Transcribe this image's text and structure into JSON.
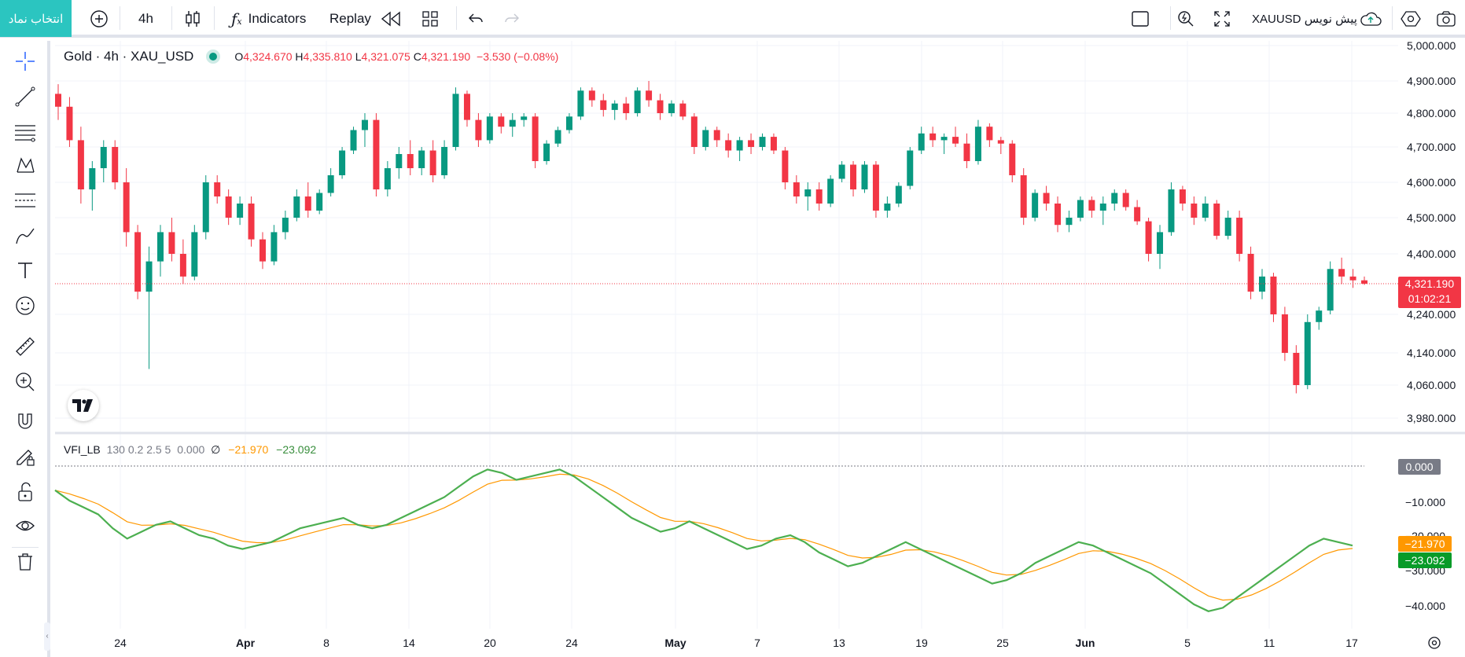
{
  "toolbar": {
    "symbol_button": "انتخاب نماد",
    "interval": "4h",
    "indicators": "Indicators",
    "replay": "Replay",
    "symbol_note": "XAUUSD پیش نویس"
  },
  "legend": {
    "title": "Gold · 4h · XAU_USD",
    "o_key": "O",
    "o_val": "4,324.670",
    "h_key": "H",
    "h_val": "4,335.810",
    "l_key": "L",
    "l_val": "4,321.075",
    "c_key": "C",
    "c_val": "4,321.190",
    "change": "−3.530 (−0.08%)"
  },
  "vfi_legend": {
    "name": "VFI_LB",
    "params": "130 0.2 2.5 5",
    "zero": "0.000",
    "empty_glyph": "∅",
    "signal": "−21.970",
    "value": "−23.092"
  },
  "price_scale": [
    "5,000.000",
    "4,900.000",
    "4,800.000",
    "4,700.000",
    "4,600.000",
    "4,500.000",
    "4,400.000",
    "4,240.000",
    "4,140.000",
    "4,060.000",
    "3,980.000"
  ],
  "vfi_scale": [
    "−10.000",
    "−20.000",
    "−30.000",
    "−40.000"
  ],
  "current_price": {
    "price": "4,321.190",
    "countdown": "01:02:21"
  },
  "vfi_tags": {
    "zero": "0.000",
    "signal": "−21.970",
    "value": "−23.092"
  },
  "time_axis": [
    "24",
    "Apr",
    "8",
    "14",
    "20",
    "24",
    "May",
    "7",
    "13",
    "19",
    "25",
    "Jun",
    "5",
    "11",
    "17"
  ],
  "colors": {
    "up": "#089981",
    "down": "#f23645",
    "vfi": "#4caf50",
    "signal": "#ff9800",
    "accent": "#2bc5c0"
  },
  "chart_data": {
    "type": "candlestick",
    "price_range": [
      3950,
      5020
    ],
    "vfi_range": [
      -44,
      3
    ],
    "candles": [
      [
        4860,
        4890,
        4780,
        4820
      ],
      [
        4820,
        4850,
        4700,
        4720
      ],
      [
        4720,
        4760,
        4540,
        4580
      ],
      [
        4580,
        4660,
        4520,
        4640
      ],
      [
        4640,
        4720,
        4600,
        4700
      ],
      [
        4700,
        4720,
        4580,
        4600
      ],
      [
        4600,
        4640,
        4420,
        4460
      ],
      [
        4460,
        4480,
        4280,
        4300
      ],
      [
        4300,
        4420,
        4100,
        4380
      ],
      [
        4380,
        4480,
        4340,
        4460
      ],
      [
        4460,
        4500,
        4380,
        4400
      ],
      [
        4400,
        4440,
        4320,
        4340
      ],
      [
        4340,
        4480,
        4330,
        4460
      ],
      [
        4460,
        4620,
        4440,
        4600
      ],
      [
        4600,
        4620,
        4540,
        4560
      ],
      [
        4560,
        4580,
        4480,
        4500
      ],
      [
        4500,
        4560,
        4480,
        4540
      ],
      [
        4540,
        4560,
        4420,
        4440
      ],
      [
        4440,
        4460,
        4360,
        4380
      ],
      [
        4380,
        4480,
        4370,
        4460
      ],
      [
        4460,
        4520,
        4440,
        4500
      ],
      [
        4500,
        4580,
        4490,
        4560
      ],
      [
        4560,
        4600,
        4500,
        4520
      ],
      [
        4520,
        4580,
        4510,
        4570
      ],
      [
        4570,
        4640,
        4560,
        4620
      ],
      [
        4620,
        4700,
        4610,
        4690
      ],
      [
        4690,
        4760,
        4680,
        4750
      ],
      [
        4750,
        4800,
        4700,
        4780
      ],
      [
        4780,
        4800,
        4560,
        4580
      ],
      [
        4580,
        4660,
        4560,
        4640
      ],
      [
        4640,
        4700,
        4610,
        4680
      ],
      [
        4680,
        4720,
        4620,
        4640
      ],
      [
        4640,
        4700,
        4620,
        4690
      ],
      [
        4690,
        4720,
        4600,
        4620
      ],
      [
        4620,
        4720,
        4610,
        4700
      ],
      [
        4700,
        4880,
        4690,
        4860
      ],
      [
        4860,
        4870,
        4760,
        4780
      ],
      [
        4780,
        4800,
        4700,
        4720
      ],
      [
        4720,
        4800,
        4710,
        4790
      ],
      [
        4790,
        4800,
        4740,
        4760
      ],
      [
        4760,
        4800,
        4730,
        4780
      ],
      [
        4780,
        4800,
        4760,
        4790
      ],
      [
        4790,
        4800,
        4640,
        4660
      ],
      [
        4660,
        4720,
        4650,
        4710
      ],
      [
        4710,
        4760,
        4700,
        4750
      ],
      [
        4750,
        4800,
        4740,
        4790
      ],
      [
        4790,
        4880,
        4780,
        4870
      ],
      [
        4870,
        4880,
        4820,
        4840
      ],
      [
        4840,
        4860,
        4790,
        4810
      ],
      [
        4810,
        4840,
        4780,
        4830
      ],
      [
        4830,
        4850,
        4780,
        4800
      ],
      [
        4800,
        4880,
        4790,
        4870
      ],
      [
        4870,
        4900,
        4820,
        4840
      ],
      [
        4840,
        4860,
        4780,
        4800
      ],
      [
        4800,
        4840,
        4790,
        4830
      ],
      [
        4830,
        4840,
        4780,
        4790
      ],
      [
        4790,
        4800,
        4680,
        4700
      ],
      [
        4700,
        4760,
        4690,
        4750
      ],
      [
        4750,
        4760,
        4700,
        4720
      ],
      [
        4720,
        4740,
        4670,
        4690
      ],
      [
        4690,
        4730,
        4660,
        4720
      ],
      [
        4720,
        4740,
        4680,
        4700
      ],
      [
        4700,
        4740,
        4690,
        4730
      ],
      [
        4730,
        4740,
        4680,
        4690
      ],
      [
        4690,
        4700,
        4580,
        4600
      ],
      [
        4600,
        4620,
        4540,
        4560
      ],
      [
        4560,
        4600,
        4520,
        4580
      ],
      [
        4580,
        4600,
        4520,
        4540
      ],
      [
        4540,
        4620,
        4530,
        4610
      ],
      [
        4610,
        4660,
        4600,
        4650
      ],
      [
        4650,
        4660,
        4560,
        4580
      ],
      [
        4580,
        4660,
        4570,
        4650
      ],
      [
        4650,
        4660,
        4500,
        4520
      ],
      [
        4520,
        4560,
        4500,
        4540
      ],
      [
        4540,
        4600,
        4530,
        4590
      ],
      [
        4590,
        4700,
        4580,
        4690
      ],
      [
        4690,
        4760,
        4680,
        4740
      ],
      [
        4740,
        4760,
        4700,
        4720
      ],
      [
        4720,
        4740,
        4680,
        4730
      ],
      [
        4730,
        4760,
        4700,
        4710
      ],
      [
        4710,
        4740,
        4640,
        4660
      ],
      [
        4660,
        4780,
        4650,
        4760
      ],
      [
        4760,
        4770,
        4700,
        4720
      ],
      [
        4720,
        4730,
        4680,
        4710
      ],
      [
        4710,
        4720,
        4600,
        4620
      ],
      [
        4620,
        4640,
        4480,
        4500
      ],
      [
        4500,
        4580,
        4490,
        4570
      ],
      [
        4570,
        4590,
        4520,
        4540
      ],
      [
        4540,
        4560,
        4460,
        4480
      ],
      [
        4480,
        4520,
        4460,
        4500
      ],
      [
        4500,
        4560,
        4490,
        4550
      ],
      [
        4550,
        4560,
        4500,
        4520
      ],
      [
        4520,
        4560,
        4480,
        4540
      ],
      [
        4540,
        4580,
        4520,
        4570
      ],
      [
        4570,
        4580,
        4520,
        4530
      ],
      [
        4530,
        4550,
        4480,
        4490
      ],
      [
        4490,
        4500,
        4380,
        4400
      ],
      [
        4400,
        4480,
        4360,
        4460
      ],
      [
        4460,
        4600,
        4450,
        4580
      ],
      [
        4580,
        4590,
        4520,
        4540
      ],
      [
        4540,
        4560,
        4480,
        4500
      ],
      [
        4500,
        4560,
        4490,
        4540
      ],
      [
        4540,
        4550,
        4440,
        4450
      ],
      [
        4450,
        4520,
        4440,
        4500
      ],
      [
        4500,
        4520,
        4380,
        4400
      ],
      [
        4400,
        4420,
        4280,
        4300
      ],
      [
        4300,
        4360,
        4280,
        4340
      ],
      [
        4340,
        4350,
        4220,
        4240
      ],
      [
        4240,
        4260,
        4120,
        4140
      ],
      [
        4140,
        4160,
        4040,
        4060
      ],
      [
        4060,
        4240,
        4050,
        4220
      ],
      [
        4220,
        4260,
        4200,
        4250
      ],
      [
        4250,
        4380,
        4240,
        4360
      ],
      [
        4360,
        4390,
        4320,
        4340
      ],
      [
        4340,
        4360,
        4310,
        4330
      ],
      [
        4330,
        4340,
        4318,
        4321
      ]
    ],
    "vfi": [
      -7,
      -10,
      -12,
      -14,
      -18,
      -21,
      -19,
      -17,
      -16,
      -18,
      -20,
      -21,
      -23,
      -24,
      -23,
      -22,
      -20,
      -18,
      -17,
      -16,
      -15,
      -17,
      -18,
      -17,
      -15,
      -13,
      -11,
      -9,
      -6,
      -3,
      -1,
      -2,
      -4,
      -3,
      -2,
      -1,
      -3,
      -6,
      -9,
      -12,
      -15,
      -17,
      -19,
      -18,
      -16,
      -18,
      -20,
      -22,
      -24,
      -23,
      -21,
      -20,
      -22,
      -25,
      -27,
      -29,
      -28,
      -26,
      -24,
      -22,
      -24,
      -26,
      -28,
      -30,
      -32,
      -34,
      -33,
      -31,
      -28,
      -26,
      -24,
      -22,
      -23,
      -25,
      -27,
      -29,
      -31,
      -34,
      -37,
      -40,
      -42,
      -41,
      -38,
      -35,
      -32,
      -29,
      -26,
      -23,
      -21,
      -22,
      -23
    ]
  }
}
